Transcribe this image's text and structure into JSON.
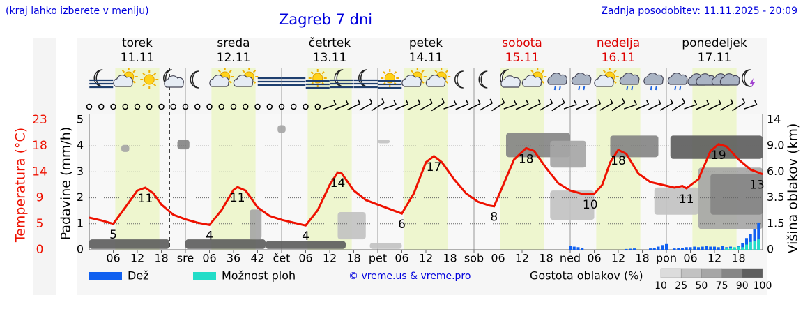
{
  "header": {
    "note": "(kraj lahko izberete v meniju)",
    "title": "Zagreb 7 dni",
    "updated": "Zadnja posodobitev: 11.11.2025 - 20:09"
  },
  "chart_data": {
    "type": "meteogram",
    "days": [
      {
        "name": "torek",
        "date": "11.11",
        "color": "#000000"
      },
      {
        "name": "sreda",
        "date": "12.11",
        "color": "#000000"
      },
      {
        "name": "četrtek",
        "date": "13.11",
        "color": "#000000"
      },
      {
        "name": "petek",
        "date": "14.11",
        "color": "#000000"
      },
      {
        "name": "sobota",
        "date": "15.11",
        "color": "#dd0000"
      },
      {
        "name": "nedelja",
        "date": "16.11",
        "color": "#dd0000"
      },
      {
        "name": "ponedeljek",
        "date": "17.11",
        "color": "#000000"
      }
    ],
    "xlim": [
      0,
      168
    ],
    "xticks": [
      {
        "value": 6,
        "label": "06"
      },
      12,
      18,
      {
        "value": 24,
        "label": "sre"
      },
      {
        "value": 30,
        "label": "06"
      },
      36,
      42,
      {
        "value": 48,
        "label": "čet"
      },
      {
        "value": 54,
        "label": "06"
      },
      {
        "value": 60,
        "label": "12"
      },
      {
        "value": 66,
        "label": "18"
      },
      {
        "value": 72,
        "label": "pet"
      },
      {
        "value": 78,
        "label": "06"
      },
      {
        "value": 84,
        "label": "12"
      },
      {
        "value": 90,
        "label": "18"
      },
      {
        "value": 96,
        "label": "sob"
      },
      {
        "value": 102,
        "label": "06"
      },
      {
        "value": 108,
        "label": "12"
      },
      {
        "value": 114,
        "label": "18"
      },
      {
        "value": 120,
        "label": "ned"
      },
      {
        "value": 126,
        "label": "06"
      },
      {
        "value": 132,
        "label": "12"
      },
      {
        "value": 138,
        "label": "18"
      },
      {
        "value": 144,
        "label": "pon"
      },
      {
        "value": 150,
        "label": "06"
      },
      {
        "value": 156,
        "label": "12"
      },
      {
        "value": 162,
        "label": "18"
      }
    ],
    "now": 20,
    "daylight": [
      [
        6.5,
        17.5
      ],
      [
        30.5,
        41.5
      ],
      [
        54.5,
        65.5
      ],
      [
        78.5,
        89.5
      ],
      [
        102.5,
        113.5
      ],
      [
        126.5,
        137.5
      ],
      [
        150.5,
        161.5
      ]
    ],
    "ylabel": "Padavine (mm/h)",
    "ylim": [
      0,
      5
    ],
    "yticks": [
      0,
      1,
      2,
      3,
      4,
      5
    ],
    "grid": true,
    "temperature": {
      "label": "Temperatura (°C)",
      "color": "#ee1100",
      "ylim": [
        0,
        23
      ],
      "yticks": [
        0,
        {
          "value": 4.6,
          "label": "5"
        },
        {
          "value": 9.2,
          "label": "9"
        },
        {
          "value": 13.8,
          "label": "14"
        },
        {
          "value": 18.4,
          "label": "18"
        },
        23
      ],
      "x": [
        0,
        3,
        6,
        9,
        12,
        14,
        16,
        18,
        21,
        24,
        27,
        30,
        33,
        36,
        37,
        39,
        42,
        45,
        48,
        51,
        54,
        57,
        60,
        62,
        63,
        66,
        69,
        72,
        75,
        78,
        81,
        84,
        86,
        88,
        91,
        94,
        97,
        100,
        101,
        103,
        106,
        109,
        111,
        114,
        117,
        120,
        123,
        125,
        126,
        128,
        130,
        132,
        134,
        137,
        140,
        143,
        146,
        148,
        149,
        152,
        155,
        157,
        159,
        162,
        165,
        168
      ],
      "values": [
        5.7,
        5.2,
        4.6,
        7.5,
        10.5,
        11.0,
        10.0,
        8.0,
        6.2,
        5.4,
        4.8,
        4.4,
        7.0,
        10.6,
        11.1,
        10.5,
        7.5,
        6.0,
        5.3,
        4.8,
        4.3,
        7.0,
        11.5,
        13.7,
        13.5,
        10.5,
        8.8,
        8.0,
        7.2,
        6.4,
        10.0,
        15.5,
        16.6,
        15.5,
        12.5,
        10.0,
        8.5,
        7.8,
        7.7,
        11.0,
        16.0,
        18.0,
        17.5,
        14.5,
        11.8,
        10.5,
        9.9,
        9.9,
        9.9,
        11.5,
        15.5,
        17.7,
        17.0,
        13.5,
        12.0,
        11.5,
        11.0,
        11.3,
        10.9,
        12.5,
        17.5,
        18.7,
        18.3,
        16.0,
        14.2,
        13.4
      ],
      "labels": {
        "x": [
          6,
          14,
          30,
          37,
          54,
          62,
          78,
          86,
          101,
          109,
          125,
          132,
          149,
          157,
          168
        ],
        "values": [
          4.6,
          11.0,
          4.4,
          11.1,
          4.3,
          13.7,
          6.4,
          16.6,
          7.7,
          18.0,
          9.9,
          17.7,
          10.9,
          18.7,
          13.4
        ],
        "value_labels": [
          "5",
          "11",
          "4",
          "11",
          "4",
          "14",
          "6",
          "17",
          "8",
          "18",
          "10",
          "18",
          "11",
          "19",
          "13"
        ]
      }
    },
    "y2label": "Višina oblakov (km)",
    "y2_scale": "piecewise",
    "y2ticks": [
      0,
      1.5,
      3.5,
      {
        "value": 6,
        "label": "6.0"
      },
      {
        "value": 9,
        "label": "9.0"
      },
      14
    ],
    "series": [
      {
        "name": "Dež",
        "color": "#1060f0",
        "x": [
          120,
          121,
          122,
          123,
          134,
          135,
          136,
          140,
          141,
          142,
          143,
          144,
          146,
          147,
          148,
          149,
          150,
          151,
          152,
          153,
          154,
          155,
          156,
          157,
          158,
          159,
          160,
          161,
          162,
          163,
          164,
          165,
          166,
          167
        ],
        "values": [
          0.15,
          0.12,
          0.1,
          0.06,
          0.03,
          0.04,
          0.05,
          0.05,
          0.08,
          0.12,
          0.18,
          0.22,
          0.05,
          0.06,
          0.08,
          0.1,
          0.1,
          0.12,
          0.1,
          0.12,
          0.15,
          0.12,
          0.12,
          0.1,
          0.15,
          0.1,
          0.12,
          0.08,
          0.15,
          0.25,
          0.45,
          0.6,
          0.8,
          1.05
        ]
      },
      {
        "name": "Možnost ploh",
        "color": "#22ddc8",
        "x": [
          159,
          160,
          161,
          162,
          163,
          164,
          165,
          166,
          167
        ],
        "values": [
          0.05,
          0.08,
          0.1,
          0.12,
          0.1,
          0.2,
          0.3,
          0.35,
          0.4
        ]
      }
    ],
    "clouds": {
      "label": "Gostota oblakov (%)",
      "ticks": [
        10,
        25,
        50,
        75,
        90,
        100
      ],
      "colors": [
        "#dcdcdc",
        "#c2c2c2",
        "#a6a6a6",
        "#868686",
        "#5e5e5e"
      ],
      "x": [
        0,
        8,
        22,
        24,
        40,
        47,
        44,
        62,
        70,
        72,
        104,
        115,
        115,
        130,
        145,
        152,
        141,
        155
      ],
      "x2": [
        20,
        10,
        25,
        44,
        43,
        49,
        64,
        69,
        78,
        75,
        120,
        124,
        126,
        142,
        168,
        168,
        152,
        168
      ],
      "base": [
        0.05,
        8.3,
        8.6,
        0.05,
        0.6,
        11.5,
        0.05,
        0.6,
        0.05,
        9.5,
        7.7,
        6.5,
        1.8,
        7.7,
        7.5,
        1.2,
        2.2,
        2.2
      ],
      "top": [
        0.6,
        9.2,
        10.2,
        0.6,
        2.6,
        13,
        0.5,
        2.4,
        0.4,
        10.2,
        11.5,
        10,
        4.2,
        11,
        11,
        6.5,
        4.5,
        5.8
      ],
      "values": [
        90,
        50,
        75,
        90,
        50,
        50,
        90,
        40,
        40,
        25,
        75,
        50,
        40,
        75,
        90,
        50,
        40,
        75
      ]
    }
  },
  "credit": "© vreme.us & vreme.pro"
}
